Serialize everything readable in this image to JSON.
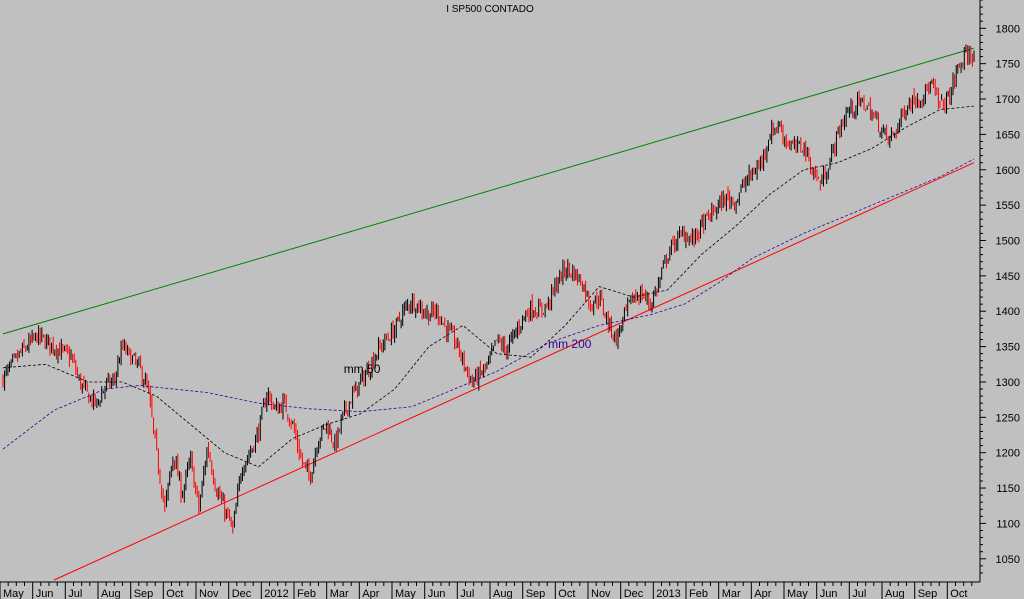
{
  "chart_data": {
    "type": "line",
    "title": "I SP500 CONTADO",
    "style": "candlestick",
    "ylim": [
      1020,
      1840
    ],
    "yticks": [
      1050,
      1100,
      1150,
      1200,
      1250,
      1300,
      1350,
      1400,
      1450,
      1500,
      1550,
      1600,
      1650,
      1700,
      1750,
      1800
    ],
    "x_labels": [
      "May",
      "Jun",
      "Jul",
      "Aug",
      "Sep",
      "Oct",
      "Nov",
      "Dec",
      "2012",
      "Feb",
      "Mar",
      "Apr",
      "May",
      "Jun",
      "Jul",
      "Aug",
      "Sep",
      "Oct",
      "Nov",
      "Dec",
      "2013",
      "Feb",
      "Mar",
      "Apr",
      "May",
      "Jun",
      "Jul",
      "Aug",
      "Sep",
      "Oct"
    ],
    "grid": false,
    "colors": {
      "up": "#000000",
      "down": "#ff0000",
      "upper_trendline": "#008000",
      "lower_trendline": "#ff0000",
      "ma50": "#000000",
      "ma200": "#330099",
      "background": "#c0c0c0"
    },
    "close_path": [
      [
        0,
        1305
      ],
      [
        2,
        1340
      ],
      [
        4,
        1365
      ],
      [
        6,
        1350
      ],
      [
        8,
        1335
      ],
      [
        9,
        1300
      ],
      [
        10,
        1280
      ],
      [
        11,
        1268
      ],
      [
        12,
        1295
      ],
      [
        13,
        1300
      ],
      [
        14,
        1350
      ],
      [
        15,
        1335
      ],
      [
        16,
        1320
      ],
      [
        17,
        1290
      ],
      [
        18,
        1200
      ],
      [
        19,
        1120
      ],
      [
        20,
        1200
      ],
      [
        21,
        1140
      ],
      [
        22,
        1190
      ],
      [
        23,
        1120
      ],
      [
        24,
        1210
      ],
      [
        25,
        1150
      ],
      [
        26,
        1120
      ],
      [
        27,
        1090
      ],
      [
        28,
        1180
      ],
      [
        29,
        1200
      ],
      [
        30,
        1230
      ],
      [
        31,
        1285
      ],
      [
        32,
        1260
      ],
      [
        33,
        1270
      ],
      [
        34,
        1240
      ],
      [
        35,
        1190
      ],
      [
        36,
        1165
      ],
      [
        37,
        1220
      ],
      [
        38,
        1240
      ],
      [
        39,
        1210
      ],
      [
        40,
        1255
      ],
      [
        41,
        1280
      ],
      [
        42,
        1300
      ],
      [
        43,
        1320
      ],
      [
        44,
        1345
      ],
      [
        45,
        1360
      ],
      [
        46,
        1375
      ],
      [
        47,
        1400
      ],
      [
        48,
        1415
      ],
      [
        49,
        1405
      ],
      [
        50,
        1395
      ],
      [
        51,
        1400
      ],
      [
        52,
        1375
      ],
      [
        53,
        1360
      ],
      [
        54,
        1330
      ],
      [
        55,
        1300
      ],
      [
        56,
        1310
      ],
      [
        57,
        1325
      ],
      [
        58,
        1360
      ],
      [
        59,
        1345
      ],
      [
        60,
        1365
      ],
      [
        61,
        1390
      ],
      [
        62,
        1405
      ],
      [
        63,
        1400
      ],
      [
        64,
        1410
      ],
      [
        65,
        1440
      ],
      [
        66,
        1460
      ],
      [
        67,
        1455
      ],
      [
        68,
        1440
      ],
      [
        69,
        1410
      ],
      [
        70,
        1420
      ],
      [
        71,
        1385
      ],
      [
        72,
        1360
      ],
      [
        73,
        1395
      ],
      [
        74,
        1420
      ],
      [
        75,
        1425
      ],
      [
        76,
        1410
      ],
      [
        77,
        1440
      ],
      [
        78,
        1480
      ],
      [
        79,
        1500
      ],
      [
        80,
        1510
      ],
      [
        81,
        1500
      ],
      [
        82,
        1520
      ],
      [
        83,
        1535
      ],
      [
        84,
        1550
      ],
      [
        85,
        1560
      ],
      [
        86,
        1555
      ],
      [
        87,
        1580
      ],
      [
        88,
        1595
      ],
      [
        89,
        1610
      ],
      [
        90,
        1650
      ],
      [
        91,
        1665
      ],
      [
        92,
        1640
      ],
      [
        93,
        1630
      ],
      [
        94,
        1635
      ],
      [
        95,
        1600
      ],
      [
        96,
        1580
      ],
      [
        97,
        1610
      ],
      [
        98,
        1650
      ],
      [
        99,
        1680
      ],
      [
        100,
        1690
      ],
      [
        101,
        1695
      ],
      [
        102,
        1680
      ],
      [
        103,
        1660
      ],
      [
        104,
        1640
      ],
      [
        105,
        1660
      ],
      [
        106,
        1690
      ],
      [
        107,
        1700
      ],
      [
        108,
        1705
      ],
      [
        109,
        1720
      ],
      [
        110,
        1690
      ],
      [
        111,
        1700
      ],
      [
        112,
        1740
      ],
      [
        113,
        1760
      ],
      [
        114,
        1765
      ]
    ],
    "ma50_path": [
      [
        0,
        1320
      ],
      [
        5,
        1325
      ],
      [
        10,
        1300
      ],
      [
        14,
        1300
      ],
      [
        18,
        1280
      ],
      [
        22,
        1240
      ],
      [
        26,
        1200
      ],
      [
        30,
        1180
      ],
      [
        34,
        1220
      ],
      [
        38,
        1240
      ],
      [
        42,
        1255
      ],
      [
        46,
        1290
      ],
      [
        50,
        1350
      ],
      [
        54,
        1380
      ],
      [
        58,
        1340
      ],
      [
        62,
        1335
      ],
      [
        66,
        1380
      ],
      [
        70,
        1435
      ],
      [
        74,
        1420
      ],
      [
        78,
        1430
      ],
      [
        82,
        1480
      ],
      [
        86,
        1520
      ],
      [
        90,
        1565
      ],
      [
        94,
        1600
      ],
      [
        98,
        1610
      ],
      [
        102,
        1630
      ],
      [
        106,
        1660
      ],
      [
        110,
        1685
      ],
      [
        114,
        1690
      ]
    ],
    "ma200_path": [
      [
        0,
        1205
      ],
      [
        6,
        1260
      ],
      [
        12,
        1290
      ],
      [
        16,
        1295
      ],
      [
        20,
        1290
      ],
      [
        24,
        1285
      ],
      [
        30,
        1270
      ],
      [
        36,
        1262
      ],
      [
        42,
        1258
      ],
      [
        48,
        1265
      ],
      [
        52,
        1285
      ],
      [
        58,
        1315
      ],
      [
        64,
        1355
      ],
      [
        70,
        1380
      ],
      [
        76,
        1395
      ],
      [
        80,
        1410
      ],
      [
        84,
        1440
      ],
      [
        88,
        1475
      ],
      [
        94,
        1510
      ],
      [
        100,
        1540
      ],
      [
        106,
        1570
      ],
      [
        110,
        1590
      ],
      [
        114,
        1615
      ]
    ],
    "upper_trendline": [
      [
        0,
        1368
      ],
      [
        114,
        1772
      ]
    ],
    "lower_trendline": [
      [
        6,
        1020
      ],
      [
        114,
        1610
      ]
    ],
    "annotations": {
      "ma50": {
        "text": "mm 50",
        "x": 40,
        "y": 1313
      },
      "ma200": {
        "text": "mm 200",
        "x": 64,
        "y": 1348
      }
    }
  }
}
